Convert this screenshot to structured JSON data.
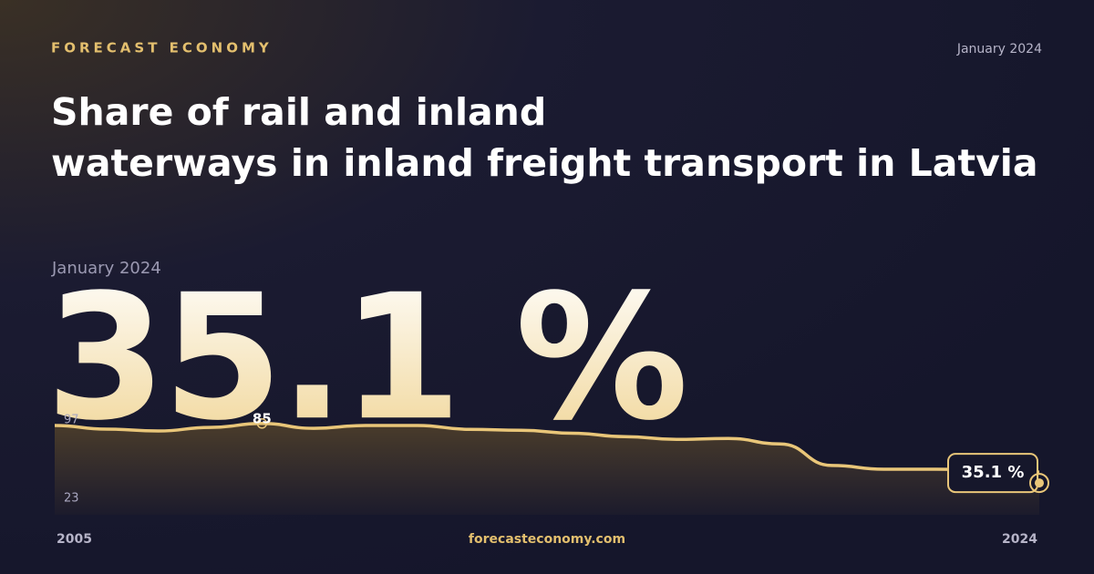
{
  "brand": "FORECAST ECONOMY",
  "date": "January 2024",
  "footer": "forecasteconomy.com",
  "chart_data": {
    "type": "area",
    "title": "Share of rail and inland waterways in inland freight transport in Latvia",
    "x": [
      2005,
      2006,
      2007,
      2008,
      2009,
      2010,
      2011,
      2012,
      2013,
      2014,
      2015,
      2016,
      2017,
      2018,
      2019,
      2020,
      2021,
      2022,
      2023,
      2024
    ],
    "values": [
      83,
      79.2,
      77.3,
      81,
      85,
      80,
      83,
      83,
      79,
      78,
      75,
      71.5,
      68.7,
      69.6,
      64,
      41.8,
      38,
      38,
      37,
      35.1
    ],
    "last_value_label": "35.1 %",
    "color": "#e9c679",
    "xlim": [
      2005,
      2024
    ],
    "xticks": [
      2005,
      2024
    ],
    "ylim": [
      23,
      97
    ],
    "yticks": [
      23,
      97
    ]
  }
}
